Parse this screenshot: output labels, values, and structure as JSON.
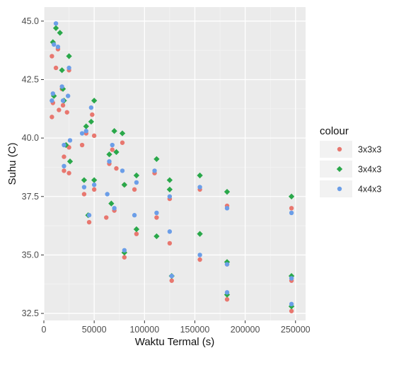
{
  "chart_data": {
    "type": "scatter",
    "title": "",
    "xlabel": "Waktu Termal (s)",
    "ylabel": "Suhu (C)",
    "xlim": [
      0,
      260000
    ],
    "ylim": [
      32.2,
      45.6
    ],
    "x_ticks": [
      0,
      50000,
      100000,
      150000,
      200000,
      250000
    ],
    "x_tick_labels": [
      "0",
      "50000",
      "100000",
      "150000",
      "200000",
      "250000"
    ],
    "y_ticks": [
      32.5,
      35.0,
      37.5,
      40.0,
      42.5,
      45.0
    ],
    "y_tick_labels": [
      "32.5",
      "35.0",
      "37.5",
      "40.0",
      "42.5",
      "45.0"
    ],
    "grid": true,
    "panel_background": "#ebebeb",
    "legend_title": "colour",
    "legend_position": "right",
    "series": [
      {
        "name": "3x3x3",
        "color": "#e8776f",
        "marker": "circle",
        "points": [
          [
            8000,
            43.5
          ],
          [
            8000,
            40.9
          ],
          [
            9000,
            41.5
          ],
          [
            12000,
            43.0
          ],
          [
            14000,
            43.8
          ],
          [
            15000,
            41.2
          ],
          [
            18000,
            42.1
          ],
          [
            19000,
            41.4
          ],
          [
            20000,
            39.2
          ],
          [
            20000,
            38.6
          ],
          [
            23000,
            41.1
          ],
          [
            25000,
            42.9
          ],
          [
            25000,
            39.6
          ],
          [
            25000,
            38.5
          ],
          [
            38000,
            39.7
          ],
          [
            40000,
            37.6
          ],
          [
            42000,
            40.2
          ],
          [
            45000,
            36.4
          ],
          [
            48000,
            41.0
          ],
          [
            50000,
            40.1
          ],
          [
            50000,
            37.8
          ],
          [
            62000,
            36.6
          ],
          [
            65000,
            38.9
          ],
          [
            68000,
            39.5
          ],
          [
            70000,
            36.9
          ],
          [
            72000,
            38.7
          ],
          [
            78000,
            39.8
          ],
          [
            80000,
            38.0
          ],
          [
            80000,
            34.9
          ],
          [
            90000,
            37.8
          ],
          [
            92000,
            35.9
          ],
          [
            110000,
            38.5
          ],
          [
            112000,
            36.6
          ],
          [
            125000,
            37.4
          ],
          [
            125000,
            35.5
          ],
          [
            127000,
            33.9
          ],
          [
            155000,
            37.8
          ],
          [
            155000,
            34.8
          ],
          [
            182000,
            37.1
          ],
          [
            182000,
            34.6
          ],
          [
            182000,
            33.1
          ],
          [
            246000,
            37.0
          ],
          [
            246000,
            33.9
          ],
          [
            246000,
            32.6
          ]
        ]
      },
      {
        "name": "3x4x3",
        "color": "#2aa84a",
        "marker": "diamond",
        "points": [
          [
            9000,
            44.1
          ],
          [
            10000,
            41.8
          ],
          [
            12000,
            44.7
          ],
          [
            16000,
            44.5
          ],
          [
            18000,
            42.9
          ],
          [
            19000,
            42.1
          ],
          [
            20000,
            41.6
          ],
          [
            22000,
            39.7
          ],
          [
            25000,
            43.5
          ],
          [
            26000,
            39.0
          ],
          [
            40000,
            38.2
          ],
          [
            42000,
            40.5
          ],
          [
            44000,
            36.7
          ],
          [
            47000,
            40.7
          ],
          [
            50000,
            41.6
          ],
          [
            50000,
            38.2
          ],
          [
            65000,
            39.3
          ],
          [
            67000,
            37.2
          ],
          [
            70000,
            40.3
          ],
          [
            72000,
            39.4
          ],
          [
            78000,
            40.2
          ],
          [
            80000,
            38.0
          ],
          [
            80000,
            35.1
          ],
          [
            92000,
            38.4
          ],
          [
            92000,
            36.1
          ],
          [
            112000,
            39.1
          ],
          [
            112000,
            35.8
          ],
          [
            125000,
            38.2
          ],
          [
            125000,
            37.8
          ],
          [
            127000,
            34.1
          ],
          [
            155000,
            38.4
          ],
          [
            155000,
            35.9
          ],
          [
            182000,
            37.7
          ],
          [
            182000,
            34.7
          ],
          [
            182000,
            33.3
          ],
          [
            246000,
            37.5
          ],
          [
            246000,
            34.1
          ],
          [
            246000,
            32.8
          ]
        ]
      },
      {
        "name": "4x4x3",
        "color": "#6b9ee8",
        "marker": "circle",
        "points": [
          [
            8000,
            41.6
          ],
          [
            9000,
            41.9
          ],
          [
            10000,
            44.0
          ],
          [
            12000,
            44.9
          ],
          [
            14000,
            43.9
          ],
          [
            18000,
            42.2
          ],
          [
            19000,
            41.6
          ],
          [
            20000,
            39.7
          ],
          [
            20000,
            38.8
          ],
          [
            24000,
            41.8
          ],
          [
            25000,
            43.0
          ],
          [
            26000,
            39.9
          ],
          [
            38000,
            40.2
          ],
          [
            40000,
            37.9
          ],
          [
            42000,
            40.3
          ],
          [
            45000,
            36.7
          ],
          [
            47000,
            41.3
          ],
          [
            50000,
            38.0
          ],
          [
            63000,
            37.6
          ],
          [
            65000,
            39.0
          ],
          [
            68000,
            39.7
          ],
          [
            70000,
            37.0
          ],
          [
            78000,
            38.6
          ],
          [
            80000,
            35.2
          ],
          [
            90000,
            36.7
          ],
          [
            92000,
            38.1
          ],
          [
            110000,
            38.6
          ],
          [
            112000,
            36.8
          ],
          [
            125000,
            37.5
          ],
          [
            125000,
            36.0
          ],
          [
            127000,
            34.1
          ],
          [
            155000,
            37.9
          ],
          [
            155000,
            35.0
          ],
          [
            182000,
            37.0
          ],
          [
            182000,
            34.6
          ],
          [
            182000,
            33.4
          ],
          [
            246000,
            36.8
          ],
          [
            246000,
            34.0
          ],
          [
            246000,
            32.9
          ]
        ]
      }
    ]
  }
}
